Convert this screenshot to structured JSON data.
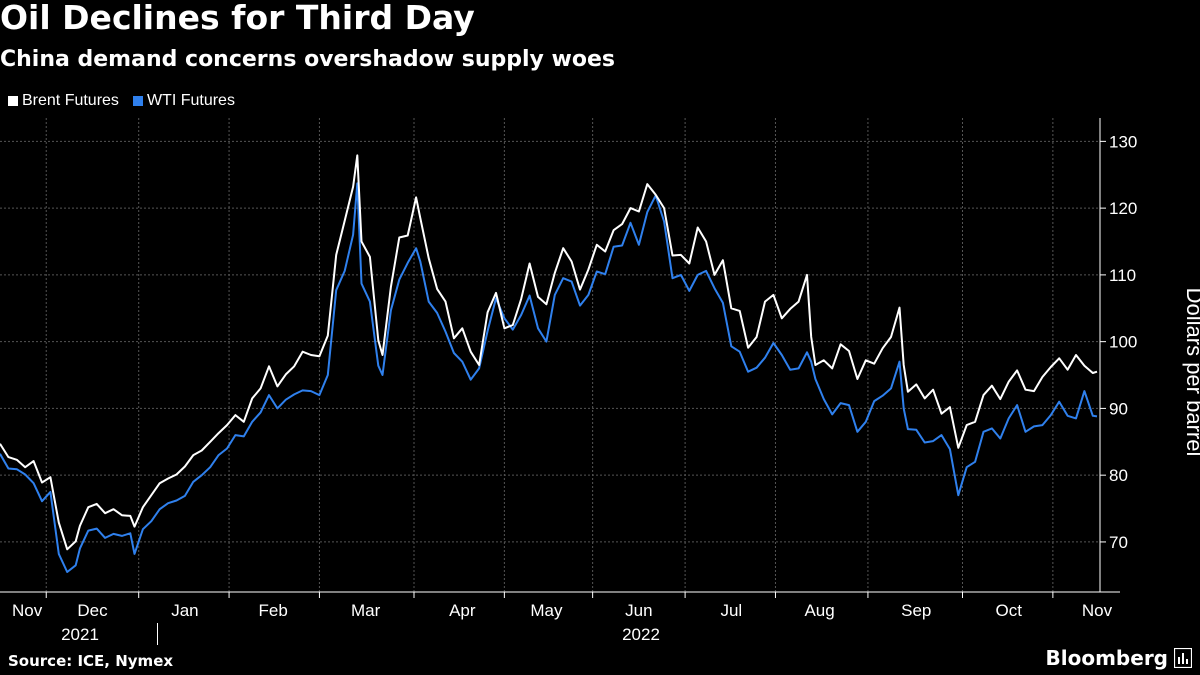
{
  "header": {
    "title": "Oil Declines for Third Day",
    "subtitle": "China demand concerns overshadow supply woes"
  },
  "legend": [
    {
      "label": "Brent Futures",
      "color": "#ffffff"
    },
    {
      "label": "WTI Futures",
      "color": "#2f80ed"
    }
  ],
  "footer": {
    "source": "Source: ICE, Nymex",
    "brand": "Bloomberg"
  },
  "colors": {
    "background": "#000000",
    "grid": "#555555",
    "brent": "#ffffff",
    "wti": "#2f80ed"
  },
  "chart_data": {
    "type": "line",
    "title": "Oil Declines for Third Day",
    "subtitle": "China demand concerns overshadow supply woes",
    "ylabel": "Dollars per barrel",
    "xlabel": "",
    "ylim": [
      62.5,
      133.5
    ],
    "yticks": [
      70,
      80,
      90,
      100,
      110,
      120,
      130
    ],
    "x_unit": "trading day index (0 = Nov 1, 2021)",
    "xlim": [
      0,
      261
    ],
    "months": [
      {
        "label": "Nov",
        "x": 0
      },
      {
        "label": "Dec",
        "x": 22
      },
      {
        "label": "Jan",
        "x": 44
      },
      {
        "label": "Feb",
        "x": 65
      },
      {
        "label": "Mar",
        "x": 87
      },
      {
        "label": "Apr",
        "x": 110
      },
      {
        "label": "May",
        "x": 130
      },
      {
        "label": "Jun",
        "x": 152
      },
      {
        "label": "Jul",
        "x": 174
      },
      {
        "label": "Aug",
        "x": 195
      },
      {
        "label": "Sep",
        "x": 218
      },
      {
        "label": "Oct",
        "x": 240
      },
      {
        "label": "Nov",
        "x": 261
      }
    ],
    "years": [
      {
        "label": "2021",
        "x": 11
      },
      {
        "label": "2022",
        "x": 152
      }
    ],
    "year_divider_x": 37,
    "grid": true,
    "series": [
      {
        "name": "Brent Futures",
        "color": "#ffffff",
        "points": [
          [
            0,
            84.7
          ],
          [
            2,
            82.7
          ],
          [
            4,
            82.3
          ],
          [
            6,
            81.2
          ],
          [
            8,
            82.1
          ],
          [
            10,
            78.9
          ],
          [
            12,
            79.7
          ],
          [
            14,
            72.9
          ],
          [
            16,
            68.9
          ],
          [
            18,
            70.1
          ],
          [
            19,
            72.4
          ],
          [
            21,
            75.2
          ],
          [
            23,
            75.7
          ],
          [
            25,
            74.3
          ],
          [
            27,
            74.9
          ],
          [
            29,
            74.0
          ],
          [
            31,
            73.9
          ],
          [
            32,
            72.3
          ],
          [
            34,
            75.2
          ],
          [
            36,
            77.0
          ],
          [
            38,
            78.8
          ],
          [
            40,
            79.5
          ],
          [
            42,
            80.1
          ],
          [
            44,
            81.3
          ],
          [
            46,
            83.0
          ],
          [
            48,
            83.7
          ],
          [
            50,
            85.0
          ],
          [
            52,
            86.3
          ],
          [
            54,
            87.5
          ],
          [
            56,
            89.0
          ],
          [
            58,
            88.0
          ],
          [
            60,
            91.5
          ],
          [
            62,
            93.0
          ],
          [
            64,
            96.3
          ],
          [
            66,
            93.3
          ],
          [
            68,
            95.1
          ],
          [
            70,
            96.3
          ],
          [
            72,
            98.5
          ],
          [
            74,
            98.0
          ],
          [
            76,
            97.8
          ],
          [
            78,
            100.9
          ],
          [
            80,
            113.0
          ],
          [
            82,
            118.1
          ],
          [
            84,
            123.2
          ],
          [
            85,
            127.9
          ],
          [
            86,
            115.0
          ],
          [
            88,
            112.7
          ],
          [
            90,
            100.2
          ],
          [
            91,
            98.0
          ],
          [
            93,
            108.2
          ],
          [
            95,
            115.6
          ],
          [
            97,
            115.9
          ],
          [
            99,
            121.6
          ],
          [
            100,
            118.5
          ],
          [
            102,
            112.5
          ],
          [
            104,
            107.9
          ],
          [
            106,
            106.0
          ],
          [
            108,
            100.5
          ],
          [
            110,
            102.0
          ],
          [
            112,
            98.5
          ],
          [
            114,
            96.5
          ],
          [
            116,
            104.4
          ],
          [
            118,
            107.3
          ],
          [
            120,
            102.0
          ],
          [
            122,
            102.5
          ],
          [
            124,
            106.4
          ],
          [
            126,
            111.7
          ],
          [
            128,
            106.7
          ],
          [
            130,
            105.6
          ],
          [
            132,
            110.3
          ],
          [
            134,
            114.0
          ],
          [
            136,
            112.0
          ],
          [
            138,
            107.8
          ],
          [
            140,
            110.8
          ],
          [
            142,
            114.5
          ],
          [
            144,
            113.5
          ],
          [
            146,
            116.7
          ],
          [
            148,
            117.6
          ],
          [
            150,
            120.0
          ],
          [
            152,
            119.5
          ],
          [
            154,
            123.6
          ],
          [
            156,
            122.0
          ],
          [
            158,
            120.0
          ],
          [
            160,
            112.9
          ],
          [
            162,
            113.0
          ],
          [
            164,
            111.7
          ],
          [
            166,
            117.1
          ],
          [
            168,
            115.0
          ],
          [
            170,
            110.0
          ],
          [
            172,
            112.2
          ],
          [
            174,
            105.0
          ],
          [
            176,
            104.6
          ],
          [
            178,
            99.1
          ],
          [
            180,
            100.7
          ],
          [
            182,
            106.0
          ],
          [
            184,
            107.0
          ],
          [
            186,
            103.5
          ],
          [
            188,
            104.9
          ],
          [
            190,
            106.0
          ],
          [
            192,
            110.0
          ],
          [
            193,
            100.7
          ],
          [
            194,
            96.5
          ],
          [
            196,
            97.2
          ],
          [
            198,
            96.0
          ],
          [
            200,
            99.6
          ],
          [
            202,
            98.6
          ],
          [
            204,
            94.4
          ],
          [
            206,
            97.2
          ],
          [
            208,
            96.7
          ],
          [
            210,
            99.0
          ],
          [
            212,
            100.7
          ],
          [
            214,
            105.1
          ],
          [
            215,
            96.5
          ],
          [
            216,
            92.5
          ],
          [
            218,
            93.6
          ],
          [
            220,
            91.5
          ],
          [
            222,
            92.8
          ],
          [
            224,
            89.2
          ],
          [
            226,
            90.2
          ],
          [
            228,
            84.1
          ],
          [
            230,
            87.5
          ],
          [
            232,
            88.0
          ],
          [
            234,
            92.0
          ],
          [
            236,
            93.4
          ],
          [
            238,
            91.4
          ],
          [
            240,
            94.0
          ],
          [
            242,
            95.7
          ],
          [
            244,
            92.8
          ],
          [
            246,
            92.6
          ],
          [
            248,
            94.7
          ],
          [
            250,
            96.2
          ],
          [
            252,
            97.5
          ],
          [
            254,
            95.8
          ],
          [
            256,
            98.0
          ],
          [
            258,
            96.4
          ],
          [
            260,
            95.3
          ],
          [
            261,
            95.5
          ]
        ]
      },
      {
        "name": "WTI Futures",
        "color": "#2f80ed",
        "points": [
          [
            0,
            83.2
          ],
          [
            2,
            81.0
          ],
          [
            4,
            80.9
          ],
          [
            6,
            80.1
          ],
          [
            8,
            78.8
          ],
          [
            10,
            76.1
          ],
          [
            12,
            77.5
          ],
          [
            14,
            68.2
          ],
          [
            16,
            65.5
          ],
          [
            18,
            66.5
          ],
          [
            19,
            69.0
          ],
          [
            21,
            71.7
          ],
          [
            23,
            72.0
          ],
          [
            25,
            70.6
          ],
          [
            27,
            71.2
          ],
          [
            29,
            70.9
          ],
          [
            31,
            71.3
          ],
          [
            32,
            68.2
          ],
          [
            34,
            71.9
          ],
          [
            36,
            73.1
          ],
          [
            38,
            74.9
          ],
          [
            40,
            75.8
          ],
          [
            42,
            76.2
          ],
          [
            44,
            76.9
          ],
          [
            46,
            79.0
          ],
          [
            48,
            80.0
          ],
          [
            50,
            81.2
          ],
          [
            52,
            83.0
          ],
          [
            54,
            84.0
          ],
          [
            56,
            86.0
          ],
          [
            58,
            85.8
          ],
          [
            60,
            88.0
          ],
          [
            62,
            89.4
          ],
          [
            64,
            92.0
          ],
          [
            66,
            90.0
          ],
          [
            68,
            91.3
          ],
          [
            70,
            92.1
          ],
          [
            72,
            92.7
          ],
          [
            74,
            92.6
          ],
          [
            76,
            92.0
          ],
          [
            78,
            95.0
          ],
          [
            80,
            107.7
          ],
          [
            82,
            110.6
          ],
          [
            84,
            116.0
          ],
          [
            85,
            123.7
          ],
          [
            86,
            108.7
          ],
          [
            88,
            106.0
          ],
          [
            90,
            96.4
          ],
          [
            91,
            95.0
          ],
          [
            93,
            104.7
          ],
          [
            95,
            109.3
          ],
          [
            97,
            111.8
          ],
          [
            99,
            114.0
          ],
          [
            100,
            112.0
          ],
          [
            102,
            106.0
          ],
          [
            104,
            104.3
          ],
          [
            106,
            101.5
          ],
          [
            108,
            98.3
          ],
          [
            110,
            97.0
          ],
          [
            112,
            94.3
          ],
          [
            114,
            96.0
          ],
          [
            116,
            101.6
          ],
          [
            118,
            106.5
          ],
          [
            120,
            103.5
          ],
          [
            122,
            101.8
          ],
          [
            124,
            104.0
          ],
          [
            126,
            106.9
          ],
          [
            128,
            102.0
          ],
          [
            130,
            100.0
          ],
          [
            132,
            107.0
          ],
          [
            134,
            109.5
          ],
          [
            136,
            109.0
          ],
          [
            138,
            105.4
          ],
          [
            140,
            107.0
          ],
          [
            142,
            110.5
          ],
          [
            144,
            110.1
          ],
          [
            146,
            114.2
          ],
          [
            148,
            114.4
          ],
          [
            150,
            117.8
          ],
          [
            152,
            114.5
          ],
          [
            154,
            119.4
          ],
          [
            156,
            121.9
          ],
          [
            158,
            118.0
          ],
          [
            160,
            109.5
          ],
          [
            162,
            110.0
          ],
          [
            164,
            107.6
          ],
          [
            166,
            110.0
          ],
          [
            168,
            110.6
          ],
          [
            170,
            108.0
          ],
          [
            172,
            105.8
          ],
          [
            174,
            99.3
          ],
          [
            176,
            98.5
          ],
          [
            178,
            95.5
          ],
          [
            180,
            96.1
          ],
          [
            182,
            97.6
          ],
          [
            184,
            99.8
          ],
          [
            186,
            98.0
          ],
          [
            188,
            95.8
          ],
          [
            190,
            96.0
          ],
          [
            192,
            98.4
          ],
          [
            193,
            97.0
          ],
          [
            194,
            94.4
          ],
          [
            196,
            91.4
          ],
          [
            198,
            89.1
          ],
          [
            200,
            90.8
          ],
          [
            202,
            90.5
          ],
          [
            204,
            86.5
          ],
          [
            206,
            88.0
          ],
          [
            208,
            91.1
          ],
          [
            210,
            91.9
          ],
          [
            212,
            93.0
          ],
          [
            214,
            97.0
          ],
          [
            215,
            90.0
          ],
          [
            216,
            86.9
          ],
          [
            218,
            86.8
          ],
          [
            220,
            84.9
          ],
          [
            222,
            85.1
          ],
          [
            224,
            86.0
          ],
          [
            226,
            83.9
          ],
          [
            228,
            77.0
          ],
          [
            230,
            81.2
          ],
          [
            232,
            82.0
          ],
          [
            234,
            86.5
          ],
          [
            236,
            87.0
          ],
          [
            238,
            85.5
          ],
          [
            240,
            88.5
          ],
          [
            242,
            90.5
          ],
          [
            244,
            86.5
          ],
          [
            246,
            87.3
          ],
          [
            248,
            87.5
          ],
          [
            250,
            89.0
          ],
          [
            252,
            91.0
          ],
          [
            254,
            88.9
          ],
          [
            256,
            88.5
          ],
          [
            258,
            92.6
          ],
          [
            260,
            88.9
          ],
          [
            261,
            88.8
          ]
        ]
      }
    ]
  }
}
